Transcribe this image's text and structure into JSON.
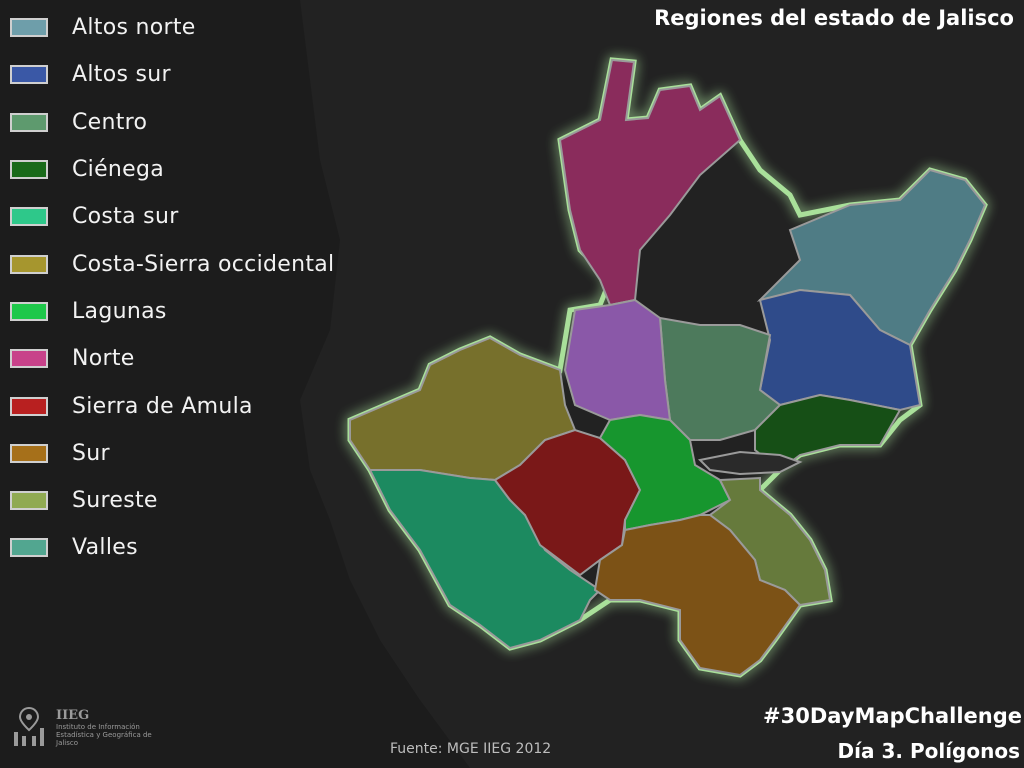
{
  "title": "Regiones del estado de Jalisco",
  "hashtag": "#30DayMapChallenge",
  "subtitle": "Día 3. Polígonos",
  "source": "Fuente: MGE IIEG 2012",
  "logo": {
    "acronym": "IIEG",
    "name": "Instituto de Información Estadística y Geográfica de Jalisco"
  },
  "legend": [
    {
      "label": "Altos norte",
      "color": "#6e9eaa"
    },
    {
      "label": "Altos sur",
      "color": "#3a58a6"
    },
    {
      "label": "Centro",
      "color": "#5e9a6e"
    },
    {
      "label": "Ciénega",
      "color": "#1a6a1a"
    },
    {
      "label": "Costa sur",
      "color": "#2ec88a"
    },
    {
      "label": "Costa-Sierra occidental",
      "color": "#a6962e"
    },
    {
      "label": "Lagunas",
      "color": "#1ec84a"
    },
    {
      "label": "Norte",
      "color": "#c8428a"
    },
    {
      "label": "Sierra de Amula",
      "color": "#b82020"
    },
    {
      "label": "Sur",
      "color": "#a6701a"
    },
    {
      "label": "Sureste",
      "color": "#90aa52"
    },
    {
      "label": "Valles",
      "color": "#52a690"
    }
  ],
  "colors": {
    "background": "#1c1c1c",
    "outline_glow": "#b8f5a8",
    "lake": "#2a2a2a"
  }
}
